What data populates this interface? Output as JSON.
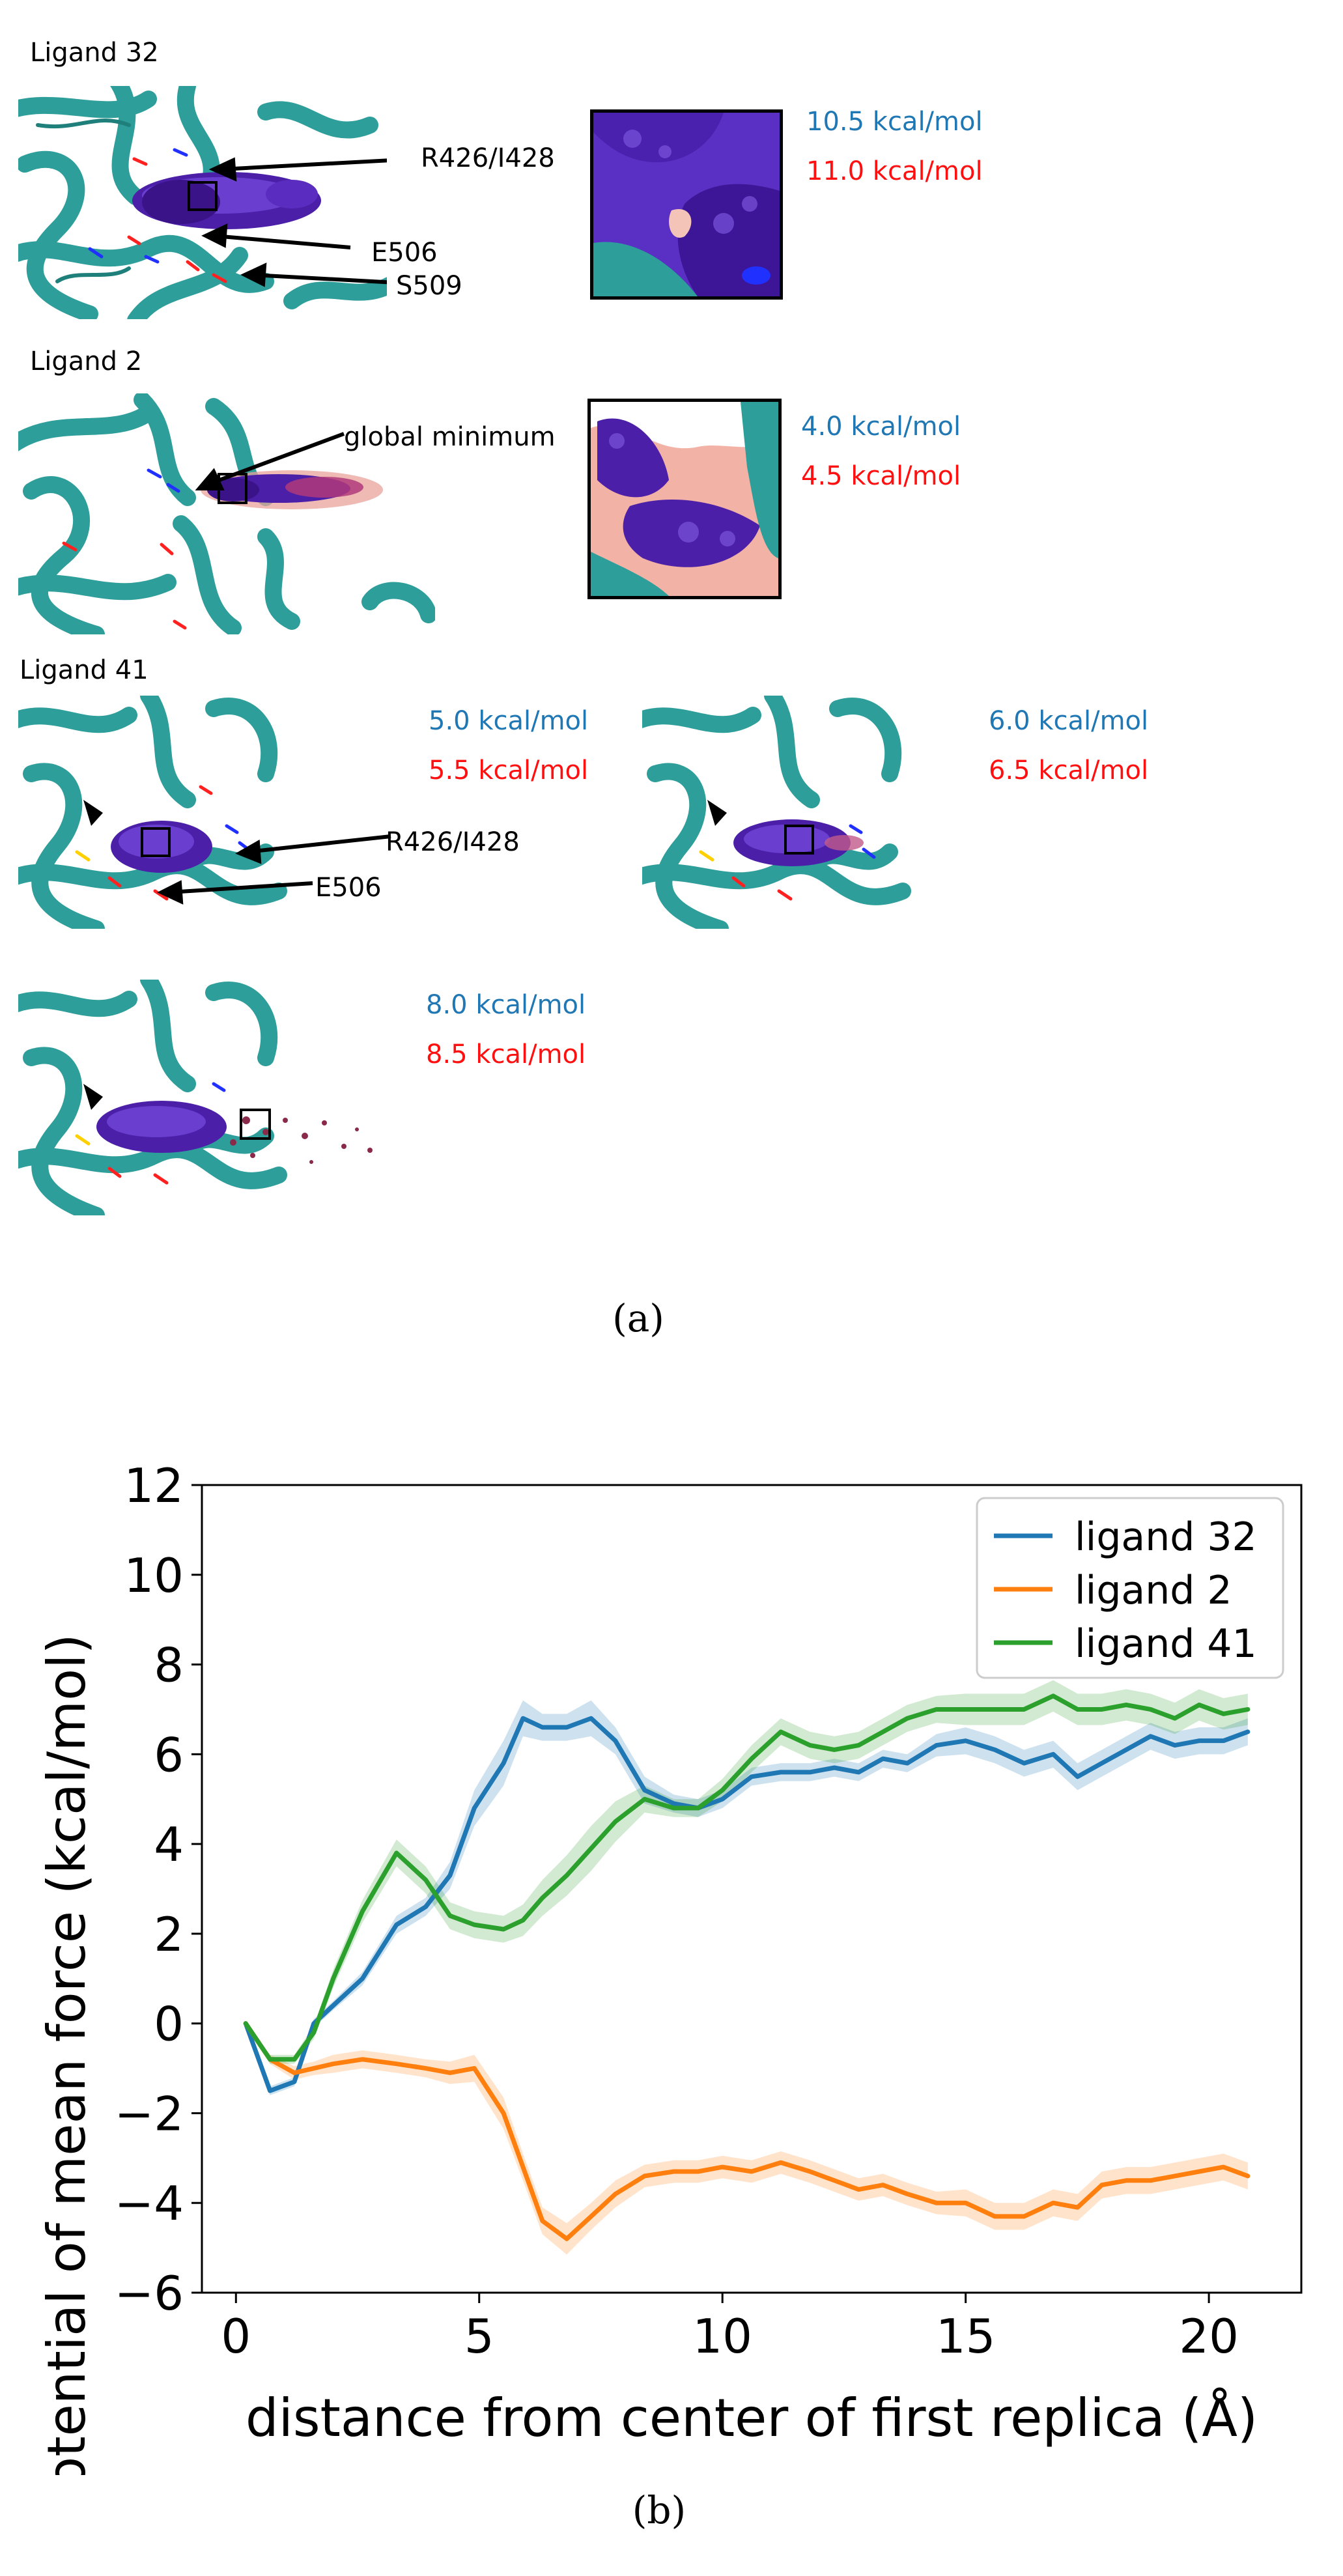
{
  "panel_a": {
    "caption": "(a)",
    "rows": [
      {
        "title": "Ligand 32",
        "annotations": [
          "R426/I428",
          "E506",
          "S509"
        ],
        "energy_blue": "10.5 kcal/mol",
        "energy_red": "11.0 kcal/mol"
      },
      {
        "title": "Ligand 2",
        "annotations": [
          "global minimum"
        ],
        "energy_blue": "4.0 kcal/mol",
        "energy_red": "4.5 kcal/mol"
      },
      {
        "title": "Ligand 41",
        "annotations": [
          "R426/I428",
          "E506"
        ],
        "snapshots": [
          {
            "energy_blue": "5.0 kcal/mol",
            "energy_red": "5.5 kcal/mol"
          },
          {
            "energy_blue": "6.0 kcal/mol",
            "energy_red": "6.5 kcal/mol"
          },
          {
            "energy_blue": "8.0 kcal/mol",
            "energy_red": "8.5 kcal/mol"
          }
        ]
      }
    ],
    "colors": {
      "protein": "#2e9e9a",
      "ligand_density": "#4b1fa8",
      "energy_blue": "#1f77b4",
      "energy_red": "#ff1010"
    }
  },
  "panel_b": {
    "caption": "(b)"
  },
  "chart_data": {
    "type": "line",
    "xlabel": "distance from center of first replica (Å)",
    "ylabel": "potential of mean force (kcal/mol)",
    "xlim": [
      -0.7,
      21.9
    ],
    "ylim": [
      -6,
      12
    ],
    "xticks": [
      0,
      5,
      10,
      15,
      20
    ],
    "yticks": [
      -6,
      -4,
      -2,
      0,
      2,
      4,
      6,
      8,
      10,
      12
    ],
    "xtick_labels": [
      "0",
      "5",
      "10",
      "15",
      "20"
    ],
    "ytick_labels": [
      "−6",
      "−4",
      "−2",
      "0",
      "2",
      "4",
      "6",
      "8",
      "10",
      "12"
    ],
    "grid": false,
    "legend_position": "top-right",
    "series": [
      {
        "name": "ligand 32",
        "color": "#1f77b4",
        "x": [
          0.2,
          0.7,
          1.2,
          1.6,
          2.0,
          2.6,
          3.3,
          3.9,
          4.4,
          4.9,
          5.5,
          5.9,
          6.3,
          6.8,
          7.3,
          7.8,
          8.4,
          9.0,
          9.5,
          10.0,
          10.6,
          11.2,
          11.8,
          12.3,
          12.8,
          13.3,
          13.8,
          14.4,
          15.0,
          15.6,
          16.2,
          16.8,
          17.3,
          17.8,
          18.3,
          18.8,
          19.3,
          19.8,
          20.3,
          20.8
        ],
        "y": [
          0.0,
          -1.5,
          -1.3,
          0.0,
          0.4,
          1.0,
          2.2,
          2.6,
          3.3,
          4.8,
          5.8,
          6.8,
          6.6,
          6.6,
          6.8,
          6.3,
          5.2,
          4.9,
          4.8,
          5.0,
          5.5,
          5.6,
          5.6,
          5.7,
          5.6,
          5.9,
          5.8,
          6.2,
          6.3,
          6.1,
          5.8,
          6.0,
          5.5,
          5.8,
          6.1,
          6.4,
          6.2,
          6.3,
          6.3,
          6.5
        ],
        "band_halfwidth": [
          0.0,
          0.1,
          0.1,
          0.1,
          0.1,
          0.15,
          0.2,
          0.2,
          0.3,
          0.4,
          0.5,
          0.4,
          0.3,
          0.3,
          0.4,
          0.3,
          0.3,
          0.2,
          0.2,
          0.2,
          0.2,
          0.2,
          0.2,
          0.2,
          0.2,
          0.2,
          0.2,
          0.25,
          0.3,
          0.3,
          0.3,
          0.3,
          0.3,
          0.3,
          0.3,
          0.3,
          0.3,
          0.3,
          0.3,
          0.3
        ]
      },
      {
        "name": "ligand 2",
        "color": "#ff7f0e",
        "x": [
          0.2,
          0.7,
          1.2,
          1.6,
          2.0,
          2.6,
          3.3,
          3.9,
          4.4,
          4.9,
          5.5,
          5.9,
          6.3,
          6.8,
          7.3,
          7.8,
          8.4,
          9.0,
          9.5,
          10.0,
          10.6,
          11.2,
          11.8,
          12.3,
          12.8,
          13.3,
          13.8,
          14.4,
          15.0,
          15.6,
          16.2,
          16.8,
          17.3,
          17.8,
          18.3,
          18.8,
          19.3,
          19.8,
          20.3,
          20.8
        ],
        "y": [
          0.0,
          -0.8,
          -1.1,
          -1.0,
          -0.9,
          -0.8,
          -0.9,
          -1.0,
          -1.1,
          -1.0,
          -2.0,
          -3.2,
          -4.4,
          -4.8,
          -4.3,
          -3.8,
          -3.4,
          -3.3,
          -3.3,
          -3.2,
          -3.3,
          -3.1,
          -3.3,
          -3.5,
          -3.7,
          -3.6,
          -3.8,
          -4.0,
          -4.0,
          -4.3,
          -4.3,
          -4.0,
          -4.1,
          -3.6,
          -3.5,
          -3.5,
          -3.4,
          -3.3,
          -3.2,
          -3.4
        ],
        "band_halfwidth": [
          0.0,
          0.1,
          0.15,
          0.15,
          0.2,
          0.2,
          0.2,
          0.2,
          0.25,
          0.3,
          0.35,
          0.3,
          0.3,
          0.35,
          0.3,
          0.3,
          0.25,
          0.25,
          0.25,
          0.25,
          0.25,
          0.25,
          0.25,
          0.25,
          0.25,
          0.25,
          0.25,
          0.25,
          0.3,
          0.3,
          0.3,
          0.3,
          0.3,
          0.3,
          0.3,
          0.3,
          0.3,
          0.3,
          0.3,
          0.3
        ]
      },
      {
        "name": "ligand 41",
        "color": "#2ca02c",
        "x": [
          0.2,
          0.7,
          1.2,
          1.6,
          2.0,
          2.6,
          3.3,
          3.9,
          4.4,
          4.9,
          5.5,
          5.9,
          6.3,
          6.8,
          7.3,
          7.8,
          8.4,
          9.0,
          9.5,
          10.0,
          10.6,
          11.2,
          11.8,
          12.3,
          12.8,
          13.3,
          13.8,
          14.4,
          15.0,
          15.6,
          16.2,
          16.8,
          17.3,
          17.8,
          18.3,
          18.8,
          19.3,
          19.8,
          20.3,
          20.8
        ],
        "y": [
          0.0,
          -0.8,
          -0.8,
          -0.2,
          1.0,
          2.5,
          3.8,
          3.2,
          2.4,
          2.2,
          2.1,
          2.3,
          2.8,
          3.3,
          3.9,
          4.5,
          5.0,
          4.8,
          4.8,
          5.2,
          5.9,
          6.5,
          6.2,
          6.1,
          6.2,
          6.5,
          6.8,
          7.0,
          7.0,
          7.0,
          7.0,
          7.3,
          7.0,
          7.0,
          7.1,
          7.0,
          6.8,
          7.1,
          6.9,
          7.0
        ],
        "band_halfwidth": [
          0.0,
          0.1,
          0.1,
          0.15,
          0.2,
          0.25,
          0.3,
          0.3,
          0.3,
          0.3,
          0.3,
          0.35,
          0.4,
          0.45,
          0.5,
          0.45,
          0.3,
          0.2,
          0.2,
          0.25,
          0.3,
          0.3,
          0.3,
          0.3,
          0.3,
          0.3,
          0.3,
          0.3,
          0.35,
          0.35,
          0.35,
          0.35,
          0.35,
          0.35,
          0.35,
          0.35,
          0.35,
          0.35,
          0.35,
          0.35
        ]
      }
    ]
  }
}
